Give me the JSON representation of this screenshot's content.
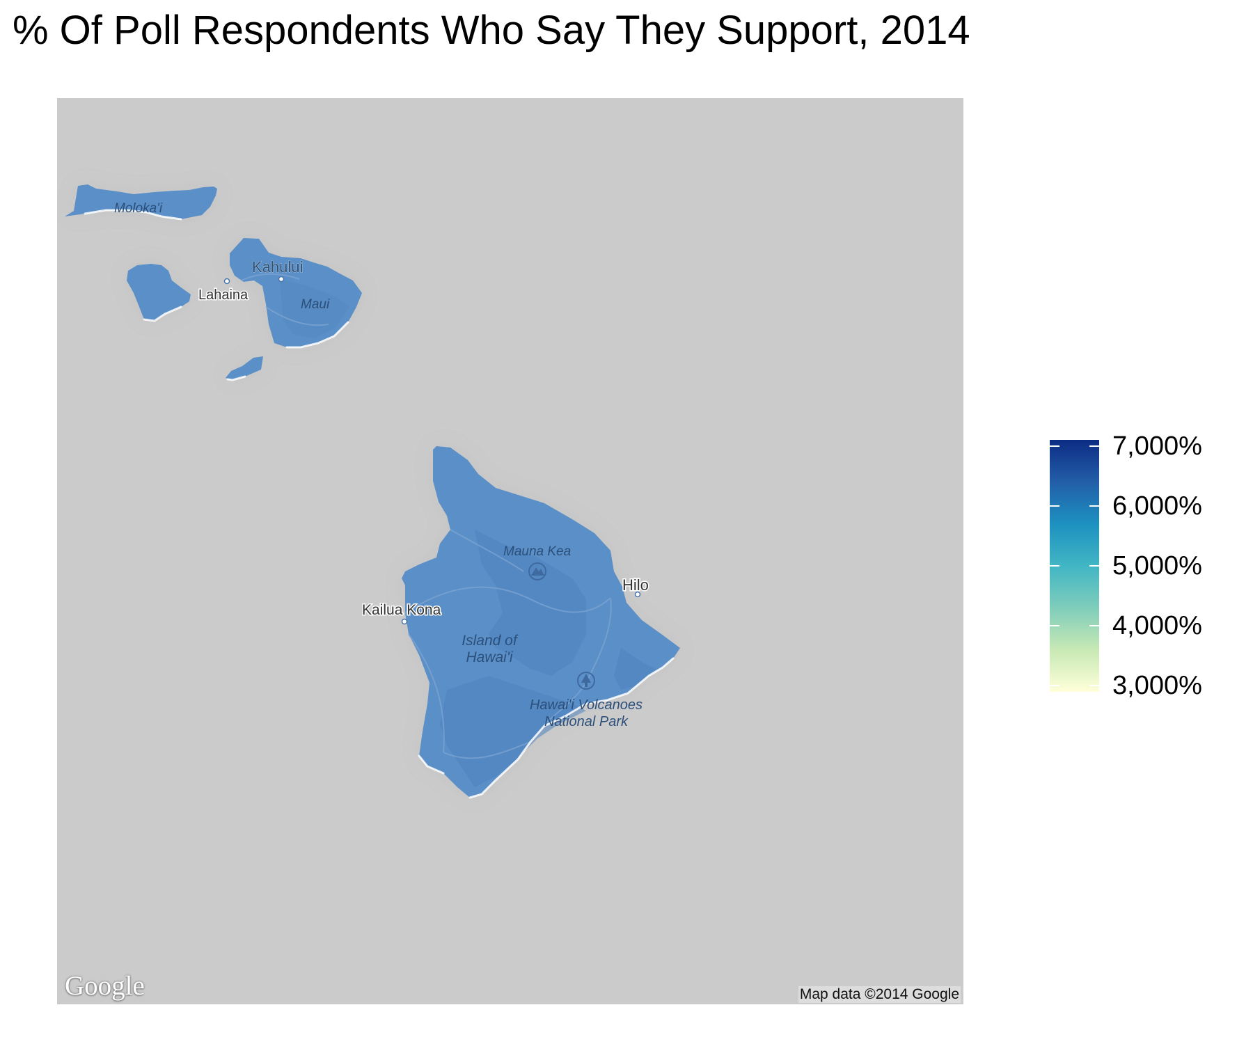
{
  "title": "% Of Poll Respondents Who Say They Support, 2014",
  "map": {
    "base_color": "#cbcbcb",
    "fill_color": "#5b8fc7",
    "fill_value_fraction": 0.75,
    "labels": {
      "molokai": "Moloka'i",
      "kahului": "Kahului",
      "lahaina": "Lahaina",
      "maui": "Maui",
      "mauna_kea": "Mauna Kea",
      "hilo": "Hilo",
      "kailua_kona": "Kailua Kona",
      "island_of_hawaii_line1": "Island of",
      "island_of_hawaii_line2": "Hawai'i",
      "volcanoes_line1": "Hawai'i Volcanoes",
      "volcanoes_line2": "National Park"
    },
    "google_logo": "Google",
    "attribution": "Map data ©2014 Google"
  },
  "legend": {
    "min": 3000,
    "max": 7000,
    "colors": [
      "#ffffd9",
      "#c7e9b4",
      "#7fcdbb",
      "#41b6c4",
      "#1d91c0",
      "#225ea8",
      "#0c2c84"
    ],
    "ticks": [
      {
        "value": 7000,
        "label": "7,000%"
      },
      {
        "value": 6000,
        "label": "6,000%"
      },
      {
        "value": 5000,
        "label": "5,000%"
      },
      {
        "value": 4000,
        "label": "4,000%"
      },
      {
        "value": 3000,
        "label": "3,000%"
      }
    ]
  }
}
